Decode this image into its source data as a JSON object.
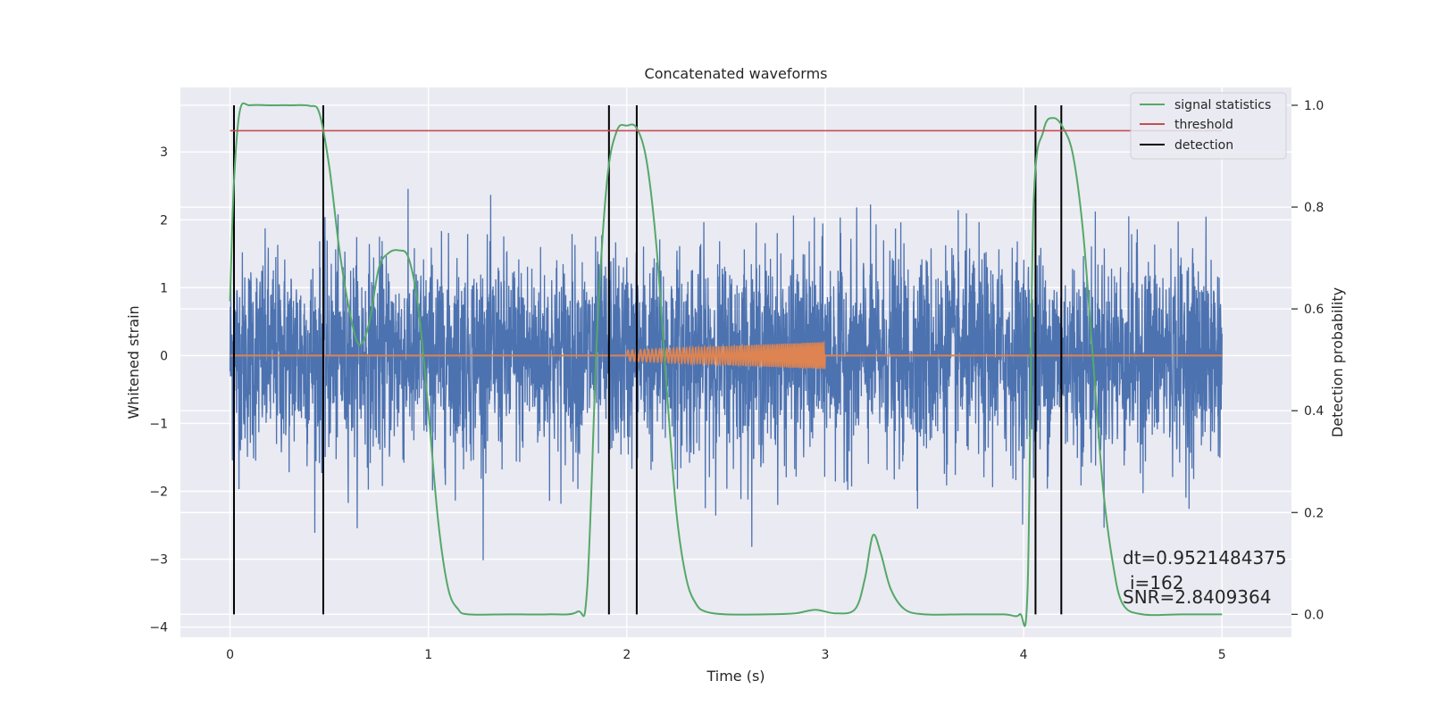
{
  "chart_data": {
    "type": "line",
    "title": "Concatenated waveforms",
    "xlabel": "Time (s)",
    "ylabel": "Whitened strain",
    "y2label": "Detection probability",
    "xlim": [
      -0.25,
      5.35
    ],
    "ylim": [
      -4.15,
      3.95
    ],
    "y2lim": [
      -0.045,
      1.035
    ],
    "xticks": [
      0,
      1,
      2,
      3,
      4,
      5
    ],
    "yticks": [
      -4,
      -3,
      -2,
      -1,
      0,
      1,
      2,
      3
    ],
    "y2ticks": [
      0.0,
      0.2,
      0.4,
      0.6,
      0.8,
      1.0
    ],
    "xtick_labels": [
      "0",
      "1",
      "2",
      "3",
      "4",
      "5"
    ],
    "ytick_labels": [
      "−4",
      "−3",
      "−2",
      "−1",
      "0",
      "1",
      "2",
      "3"
    ],
    "y2tick_labels": [
      "0.0",
      "0.2",
      "0.4",
      "0.6",
      "0.8",
      "1.0"
    ],
    "grid": true,
    "legend": {
      "position": "top-right",
      "entries": [
        {
          "label": "signal statistics",
          "color": "#55a868"
        },
        {
          "label": "threshold",
          "color": "#c44e52"
        },
        {
          "label": "detection",
          "color": "#000000"
        }
      ]
    },
    "series": [
      {
        "name": "whitened strain",
        "color": "#4c72b0",
        "axis": "left",
        "description_style": "noise",
        "x_range": [
          0,
          5
        ],
        "sigma": 0.75,
        "extreme_min": -3.9,
        "extreme_max": 3.6
      },
      {
        "name": "injected waveform",
        "color": "#dd8452",
        "axis": "left",
        "x_range": [
          0,
          5
        ],
        "chirp_start": 2.0,
        "chirp_end": 3.0,
        "amp_start": 0.08,
        "amp_end": 0.2
      },
      {
        "name": "signal statistics",
        "color": "#55a868",
        "axis": "right",
        "x": [
          0.0,
          0.02,
          0.05,
          0.1,
          0.2,
          0.3,
          0.4,
          0.45,
          0.5,
          0.55,
          0.6,
          0.65,
          0.7,
          0.75,
          0.8,
          0.85,
          0.9,
          0.95,
          1.0,
          1.05,
          1.1,
          1.15,
          1.2,
          1.4,
          1.6,
          1.75,
          1.8,
          1.85,
          1.9,
          1.95,
          2.0,
          2.05,
          2.1,
          2.15,
          2.2,
          2.25,
          2.3,
          2.35,
          2.4,
          2.5,
          2.7,
          2.85,
          2.95,
          3.05,
          3.15,
          3.2,
          3.24,
          3.28,
          3.33,
          3.4,
          3.5,
          3.7,
          3.9,
          3.98,
          4.02,
          4.05,
          4.1,
          4.15,
          4.2,
          4.25,
          4.3,
          4.35,
          4.4,
          4.45,
          4.5,
          4.6,
          4.8,
          5.0
        ],
        "y": [
          0.615,
          0.85,
          0.99,
          1.0,
          1.0,
          1.0,
          0.999,
          0.985,
          0.88,
          0.72,
          0.6,
          0.53,
          0.57,
          0.68,
          0.71,
          0.715,
          0.7,
          0.6,
          0.4,
          0.18,
          0.05,
          0.01,
          0.0,
          0.0,
          0.0,
          0.005,
          0.05,
          0.55,
          0.85,
          0.95,
          0.96,
          0.955,
          0.89,
          0.72,
          0.45,
          0.2,
          0.07,
          0.02,
          0.005,
          0.0,
          0.0,
          0.002,
          0.009,
          0.002,
          0.01,
          0.07,
          0.155,
          0.12,
          0.05,
          0.01,
          0.0,
          0.0,
          0.0,
          0.0,
          0.05,
          0.8,
          0.95,
          0.975,
          0.955,
          0.9,
          0.75,
          0.5,
          0.25,
          0.1,
          0.02,
          0.0,
          0.0,
          0.0
        ]
      },
      {
        "name": "threshold",
        "color": "#c44e52",
        "axis": "right",
        "x": [
          0,
          5
        ],
        "y": [
          0.95,
          0.95
        ]
      }
    ],
    "detections": {
      "color": "#000000",
      "x": [
        0.02,
        0.47,
        1.91,
        2.05,
        4.06,
        4.19
      ],
      "y2_range": [
        0.0,
        1.0
      ]
    },
    "annotations": [
      "dt=0.9521484375",
      "i=162",
      "SNR=2.8409364"
    ]
  }
}
